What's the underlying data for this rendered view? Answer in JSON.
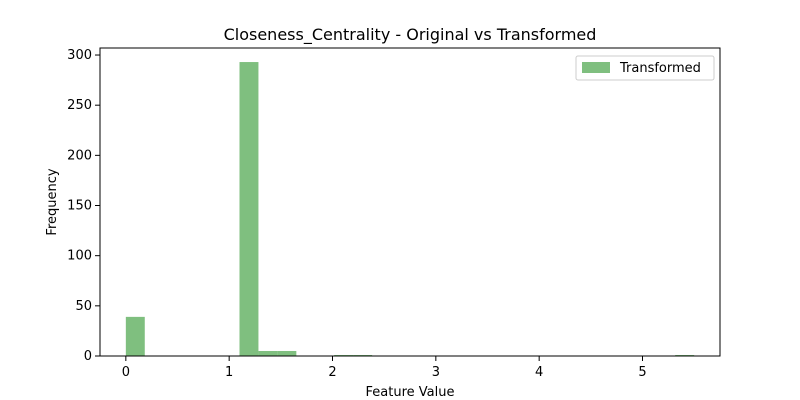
{
  "chart_data": {
    "type": "bar",
    "title": "Closeness_Centrality - Original vs Transformed",
    "xlabel": "Feature Value",
    "ylabel": "Frequency",
    "xlim": [
      -0.25,
      5.75
    ],
    "ylim": [
      0,
      307
    ],
    "xticks": [
      0,
      1,
      2,
      3,
      4,
      5
    ],
    "yticks": [
      0,
      50,
      100,
      150,
      200,
      250,
      300
    ],
    "grid": false,
    "legend_position": "top-right",
    "series": [
      {
        "name": "Transformed",
        "color": "#7fbf7f",
        "bins": [
          {
            "x0": 0.0,
            "x1": 0.1833,
            "value": 39
          },
          {
            "x0": 1.1,
            "x1": 1.2833,
            "value": 293
          },
          {
            "x0": 1.2833,
            "x1": 1.4667,
            "value": 5
          },
          {
            "x0": 1.4667,
            "x1": 1.65,
            "value": 5
          },
          {
            "x0": 2.0167,
            "x1": 2.2,
            "value": 1
          },
          {
            "x0": 2.2,
            "x1": 2.3833,
            "value": 1
          },
          {
            "x0": 5.3167,
            "x1": 5.5,
            "value": 1
          }
        ]
      }
    ]
  }
}
